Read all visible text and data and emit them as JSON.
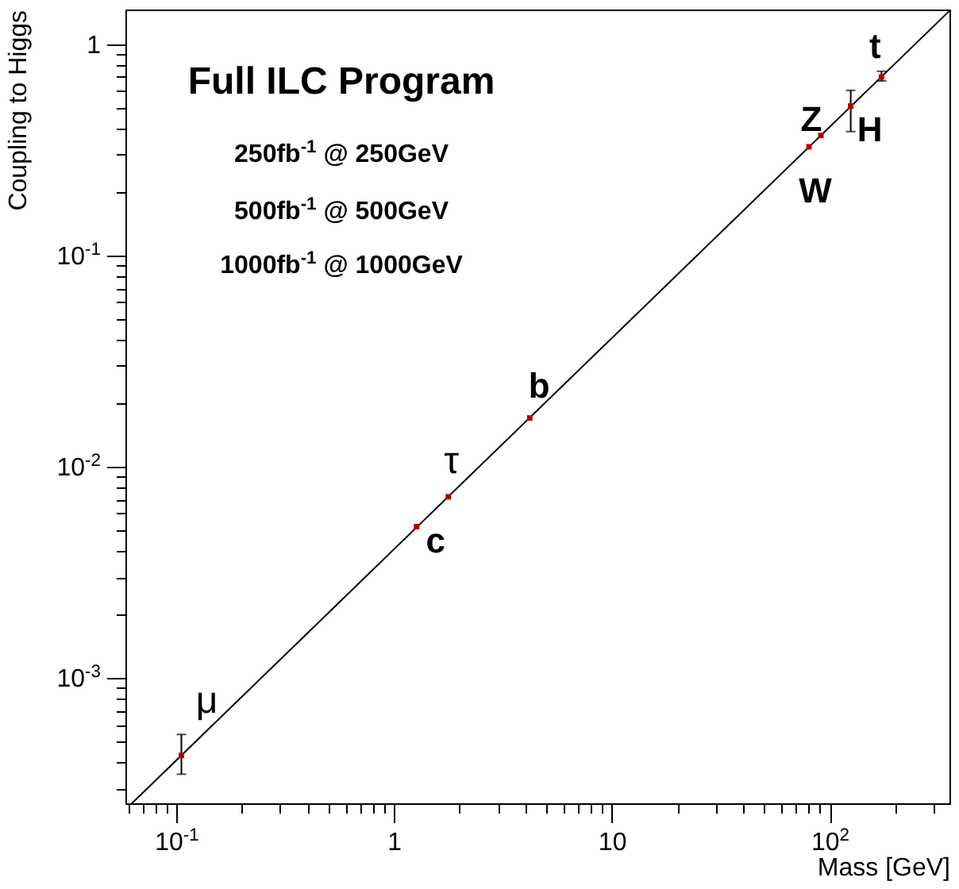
{
  "chart_data": {
    "type": "scatter",
    "xlabel": "Mass [GeV]",
    "ylabel": "Coupling to Higgs",
    "log": "xy",
    "grid": false,
    "legend": false,
    "marker": "square",
    "xlim": [
      0.0585,
      355
    ],
    "ylim": [
      0.000255,
      1.46
    ],
    "xticks": [
      {
        "value": 0.06,
        "label": null
      },
      {
        "value": 0.07,
        "label": null
      },
      {
        "value": 0.08,
        "label": null
      },
      {
        "value": 0.09,
        "label": null
      },
      {
        "value": 0.1,
        "label": "10$^{-1}$"
      },
      {
        "value": 0.2,
        "label": null
      },
      {
        "value": 0.3,
        "label": null
      },
      {
        "value": 0.4,
        "label": null
      },
      {
        "value": 0.5,
        "label": null
      },
      {
        "value": 0.6,
        "label": null
      },
      {
        "value": 0.7,
        "label": null
      },
      {
        "value": 0.8,
        "label": null
      },
      {
        "value": 0.9,
        "label": null
      },
      1,
      {
        "value": 2,
        "label": null
      },
      {
        "value": 3,
        "label": null
      },
      {
        "value": 4,
        "label": null
      },
      {
        "value": 5,
        "label": null
      },
      {
        "value": 6,
        "label": null
      },
      {
        "value": 7,
        "label": null
      },
      {
        "value": 8,
        "label": null
      },
      {
        "value": 9,
        "label": null
      },
      10,
      {
        "value": 20,
        "label": null
      },
      {
        "value": 30,
        "label": null
      },
      {
        "value": 40,
        "label": null
      },
      {
        "value": 50,
        "label": null
      },
      {
        "value": 60,
        "label": null
      },
      {
        "value": 70,
        "label": null
      },
      {
        "value": 80,
        "label": null
      },
      {
        "value": 90,
        "label": null
      },
      {
        "value": 100,
        "label": "10$^{2}$"
      },
      {
        "value": 200,
        "label": null
      },
      {
        "value": 300,
        "label": null
      }
    ],
    "yticks": [
      {
        "value": 0.0003,
        "label": null
      },
      {
        "value": 0.0004,
        "label": null
      },
      {
        "value": 0.0005,
        "label": null
      },
      {
        "value": 0.0006,
        "label": null
      },
      {
        "value": 0.0007,
        "label": null
      },
      {
        "value": 0.0008,
        "label": null
      },
      {
        "value": 0.0009,
        "label": null
      },
      {
        "value": 0.001,
        "label": "10$^{-3}$"
      },
      {
        "value": 0.002,
        "label": null
      },
      {
        "value": 0.003,
        "label": null
      },
      {
        "value": 0.004,
        "label": null
      },
      {
        "value": 0.005,
        "label": null
      },
      {
        "value": 0.006,
        "label": null
      },
      {
        "value": 0.007,
        "label": null
      },
      {
        "value": 0.008,
        "label": null
      },
      {
        "value": 0.009,
        "label": null
      },
      {
        "value": 0.01,
        "label": "10$^{-2}$"
      },
      {
        "value": 0.02,
        "label": null
      },
      {
        "value": 0.03,
        "label": null
      },
      {
        "value": 0.04,
        "label": null
      },
      {
        "value": 0.05,
        "label": null
      },
      {
        "value": 0.06,
        "label": null
      },
      {
        "value": 0.07,
        "label": null
      },
      {
        "value": 0.08,
        "label": null
      },
      {
        "value": 0.09,
        "label": null
      },
      {
        "value": 0.1,
        "label": "10$^{-1}$"
      },
      {
        "value": 0.2,
        "label": null
      },
      {
        "value": 0.3,
        "label": null
      },
      {
        "value": 0.4,
        "label": null
      },
      {
        "value": 0.5,
        "label": null
      },
      {
        "value": 0.6,
        "label": null
      },
      {
        "value": 0.7,
        "label": null
      },
      {
        "value": 0.8,
        "label": null
      },
      {
        "value": 0.9,
        "label": null
      },
      1
    ],
    "series": [
      {
        "type": "line",
        "marker": "none",
        "color": "#000000",
        "x": [
          0.0627,
          355
        ],
        "values": [
          0.000255,
          1.44
        ]
      },
      {
        "type": "scatter",
        "color": "#b00000",
        "x": [
          0.1057,
          1.27,
          1.777,
          4.2,
          80.4,
          91.2,
          125,
          173
        ],
        "values": [
          0.00043,
          0.0052,
          0.0072,
          0.017,
          0.327,
          0.37,
          0.51,
          0.7
        ],
        "errors": [
          [
            0.00035,
            0.00054
          ],
          null,
          null,
          null,
          null,
          null,
          [
            0.386,
            0.605
          ],
          [
            0.67,
            0.745
          ]
        ]
      }
    ],
    "annotations": [
      "Full ILC Program",
      "250fb$^{-1}$ @ 250GeV",
      "500fb$^{-1}$ @ 500GeV",
      "1000fb$^{-1}$ @ 1000GeV",
      {
        "text": "μ",
        "x": 0.1057,
        "y": 0.00043
      },
      {
        "text": "c",
        "x": 1.27,
        "y": 0.0052
      },
      {
        "text": "τ",
        "x": 1.777,
        "y": 0.0072
      },
      {
        "text": "b",
        "x": 4.2,
        "y": 0.017
      },
      {
        "text": "W",
        "x": 80.4,
        "y": 0.327
      },
      {
        "text": "Z",
        "x": 91.2,
        "y": 0.37
      },
      {
        "text": "H",
        "x": 125,
        "y": 0.51
      },
      {
        "text": "t",
        "x": 173,
        "y": 0.7
      }
    ]
  }
}
